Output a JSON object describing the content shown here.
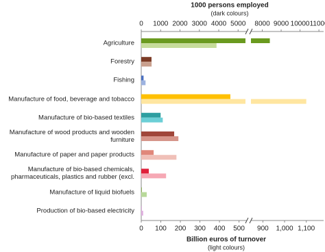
{
  "chart_data": {
    "type": "bar",
    "orientation": "horizontal",
    "categories": [
      "Agriculture",
      "Forestry",
      "Fishing",
      "Manufacture of food, beverage and tobacco",
      "Manufacture of bio-based textiles",
      "Manufacture of wood products  and wooden furniture",
      "Manufacture of paper and paper products",
      "Manufacture of bio-based chemicals, pharmaceuticals,  plastics and rubber (excl.",
      "Manufacture of liquid biofuels",
      "Production  of bio-based electricity"
    ],
    "x2label": "1000 persons employed",
    "x2sublabel": "(dark colours)",
    "x2lim": [
      0,
      11250
    ],
    "x2break": [
      5450,
      7400
    ],
    "x2ticks": [
      0,
      1000,
      2000,
      3000,
      4000,
      5000,
      8000,
      9000,
      10000,
      11000
    ],
    "xlabel": "Billion euros of turnover",
    "xsublabel": "(light colours)",
    "xlim": [
      0,
      1180
    ],
    "xbreak": [
      540,
      845
    ],
    "xticks": [
      0,
      100,
      200,
      300,
      400,
      500,
      900,
      {
        "value": 1000,
        "label": "1,000"
      },
      {
        "value": 1100,
        "label": "1,100"
      }
    ],
    "series": [
      {
        "axis": "x2",
        "values": [
          8400,
          530,
          120,
          4600,
          1000,
          1700,
          640,
          390,
          30,
          20
        ],
        "colors": [
          "#6a9a1f",
          "#7b3b26",
          "#4a6fc0",
          "#ffc000",
          "#2e9ea0",
          "#a0463a",
          "#e0877a",
          "#e0203a",
          "#77a33a",
          "#c070c0"
        ]
      },
      {
        "axis": "x",
        "values": [
          385,
          53,
          22,
          1100,
          110,
          190,
          180,
          127,
          28,
          10
        ],
        "colors": [
          "#c6dc9a",
          "#c9a08e",
          "#9db3e0",
          "#ffe6a0",
          "#6ccfd6",
          "#d6958a",
          "#f0c0b8",
          "#f6a8b4",
          "#b8d99a",
          "#e0b0e0"
        ]
      }
    ]
  }
}
